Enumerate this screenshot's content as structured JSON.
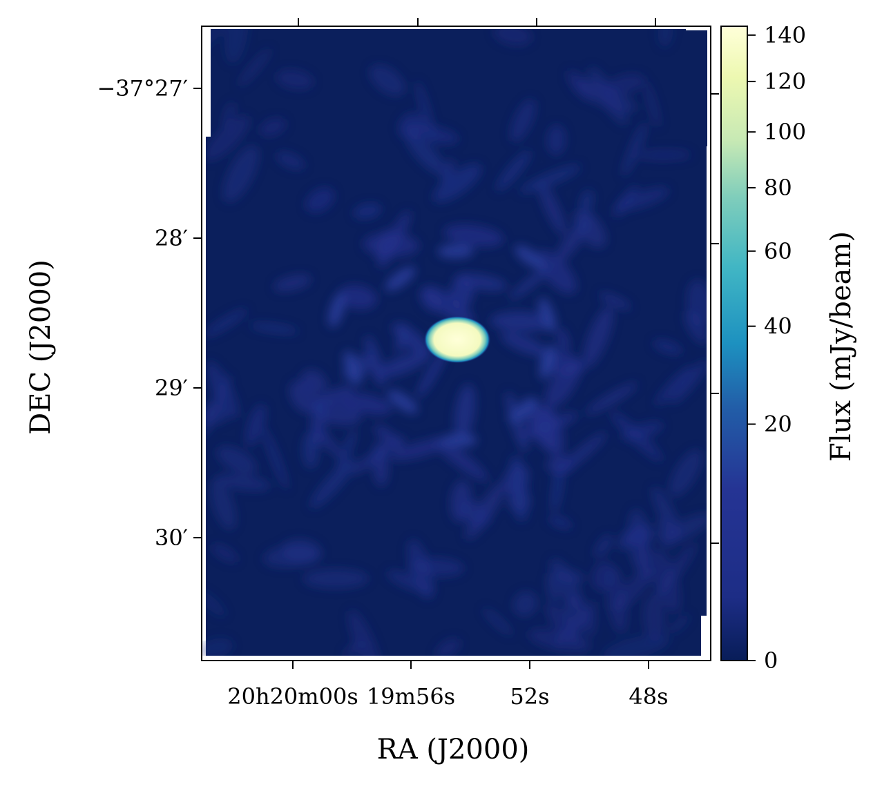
{
  "chart_data": {
    "type": "heatmap",
    "title": "",
    "xlabel": "RA (J2000)",
    "ylabel": "DEC (J2000)",
    "x_ticks": [
      {
        "label": "20h20m00s",
        "value": "20h20m00s"
      },
      {
        "label": "19m56s",
        "value": "20h19m56s"
      },
      {
        "label": "52s",
        "value": "20h19m52s"
      },
      {
        "label": "48s",
        "value": "20h19m48s"
      }
    ],
    "y_ticks": [
      {
        "label": "−37°27′",
        "value": -37.45
      },
      {
        "label": "28′",
        "value": -37.4667
      },
      {
        "label": "29′",
        "value": -37.4833
      },
      {
        "label": "30′",
        "value": -37.5
      }
    ],
    "source": {
      "ra": "20h19m54.4s",
      "dec": "−37°28′40″",
      "peak_flux": 140
    },
    "image_description_values": {
      "background_flux": 2,
      "sidelobe_flux": 8
    },
    "colorbar": {
      "label": "Flux (mJy/beam)",
      "colormap": "YlGnBu",
      "scale": "sqrt",
      "vmin": 0,
      "vmax": 144,
      "ticks": [
        0,
        20,
        40,
        60,
        80,
        100,
        120,
        140
      ],
      "tick_labels": [
        "0",
        "20",
        "40",
        "60",
        "80",
        "100",
        "120",
        "140"
      ]
    },
    "grid": false
  }
}
